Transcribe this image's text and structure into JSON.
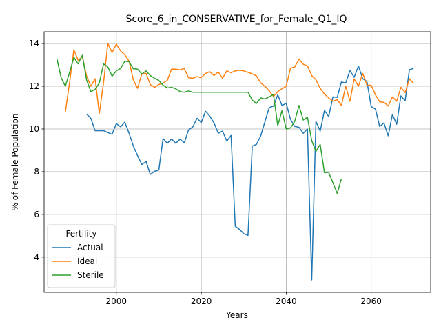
{
  "chart_data": {
    "type": "line",
    "title": "Score_6_in_CONSERVATIVE_for_Female_Q1_IQ",
    "xlabel": "Years",
    "ylabel": "% of Female Population",
    "xlim": [
      1983,
      2074
    ],
    "ylim": [
      2.35,
      14.55
    ],
    "xticks": [
      2000,
      2020,
      2040,
      2060
    ],
    "yticks": [
      4,
      6,
      8,
      10,
      12,
      14
    ],
    "grid": true,
    "legend": {
      "title": "Fertility",
      "placement": "lower-left"
    },
    "series": [
      {
        "name": "Actual",
        "color": "#1f77b4",
        "x": [
          1993,
          1994,
          1995,
          1996,
          1997,
          1998,
          1999,
          2000,
          2001,
          2002,
          2003,
          2004,
          2005,
          2006,
          2007,
          2008,
          2009,
          2010,
          2011,
          2012,
          2013,
          2014,
          2015,
          2016,
          2017,
          2018,
          2019,
          2020,
          2021,
          2022,
          2023,
          2024,
          2025,
          2026,
          2027,
          2028,
          2029,
          2030,
          2031,
          2032,
          2033,
          2034,
          2035,
          2036,
          2037,
          2038,
          2039,
          2040,
          2041,
          2042,
          2043,
          2044,
          2045,
          2046,
          2047,
          2048,
          2049,
          2050,
          2051,
          2052,
          2053,
          2054,
          2055,
          2056,
          2057,
          2058,
          2059,
          2060,
          2061,
          2062,
          2063,
          2064,
          2065,
          2066,
          2067,
          2068,
          2069,
          2070
        ],
        "y": [
          10.7,
          10.5,
          9.92,
          9.92,
          9.92,
          9.83,
          9.75,
          10.25,
          10.1,
          10.32,
          9.8,
          9.2,
          8.75,
          8.33,
          8.48,
          7.87,
          8.02,
          8.08,
          9.55,
          9.33,
          9.53,
          9.33,
          9.52,
          9.35,
          9.95,
          10.1,
          10.5,
          10.3,
          10.83,
          10.6,
          10.28,
          9.8,
          9.9,
          9.43,
          9.7,
          5.45,
          5.3,
          5.1,
          5.02,
          9.2,
          9.28,
          9.68,
          10.35,
          11.0,
          11.07,
          11.6,
          11.1,
          11.2,
          10.45,
          10.12,
          10.08,
          9.8,
          10.0,
          2.93,
          10.35,
          9.9,
          10.87,
          10.58,
          11.5,
          11.48,
          12.2,
          12.15,
          12.73,
          12.42,
          12.95,
          12.35,
          12.23,
          11.05,
          10.93,
          10.12,
          10.28,
          9.68,
          10.68,
          10.22,
          11.55,
          11.32,
          12.78,
          12.83
        ]
      },
      {
        "name": "Ideal",
        "color": "#ff7f0e",
        "x": [
          1988,
          1989,
          1990,
          1991,
          1992,
          1993,
          1994,
          1995,
          1996,
          1997,
          1998,
          1999,
          2000,
          2001,
          2002,
          2003,
          2004,
          2005,
          2006,
          2007,
          2008,
          2009,
          2010,
          2011,
          2012,
          2013,
          2014,
          2015,
          2016,
          2017,
          2018,
          2019,
          2020,
          2021,
          2022,
          2023,
          2024,
          2025,
          2026,
          2027,
          2028,
          2029,
          2030,
          2031,
          2032,
          2033,
          2034,
          2035,
          2036,
          2037,
          2038,
          2039,
          2040,
          2041,
          2042,
          2043,
          2044,
          2045,
          2046,
          2047,
          2048,
          2049,
          2050,
          2051,
          2052,
          2053,
          2054,
          2055,
          2056,
          2057,
          2058,
          2059,
          2060,
          2061,
          2062,
          2063,
          2064,
          2065,
          2066,
          2067,
          2068,
          2069,
          2070
        ],
        "y": [
          10.78,
          12.18,
          13.7,
          13.22,
          13.38,
          12.48,
          12.0,
          12.35,
          10.72,
          12.18,
          14.0,
          13.58,
          13.97,
          13.65,
          13.48,
          13.17,
          12.3,
          11.9,
          12.58,
          12.6,
          12.08,
          11.95,
          12.08,
          12.15,
          12.27,
          12.8,
          12.8,
          12.77,
          12.83,
          12.4,
          12.37,
          12.45,
          12.4,
          12.6,
          12.68,
          12.5,
          12.67,
          12.37,
          12.72,
          12.63,
          12.72,
          12.75,
          12.72,
          12.65,
          12.58,
          12.48,
          12.15,
          12.0,
          11.78,
          11.52,
          11.75,
          11.88,
          12.0,
          12.85,
          12.9,
          13.27,
          13.03,
          12.95,
          12.5,
          12.3,
          11.9,
          11.63,
          11.45,
          11.3,
          11.37,
          11.1,
          12.0,
          11.3,
          12.35,
          12.0,
          12.6,
          12.05,
          12.05,
          11.6,
          11.27,
          11.25,
          11.07,
          11.5,
          11.3,
          11.95,
          11.7,
          12.35,
          12.13
        ]
      },
      {
        "name": "Sterile",
        "color": "#2ca02c",
        "x": [
          1986,
          1987,
          1988,
          1989,
          1990,
          1991,
          1992,
          1993,
          1994,
          1995,
          1996,
          1997,
          1998,
          1999,
          2000,
          2001,
          2002,
          2003,
          2004,
          2005,
          2006,
          2007,
          2008,
          2009,
          2010,
          2011,
          2012,
          2013,
          2014,
          2015,
          2016,
          2017,
          2018,
          2019,
          2020,
          2021,
          2022,
          2023,
          2024,
          2025,
          2026,
          2027,
          2028,
          2029,
          2030,
          2031,
          2032,
          2033,
          2034,
          2035,
          2036,
          2037,
          2038,
          2039,
          2040,
          2041,
          2042,
          2043,
          2044,
          2045,
          2046,
          2047,
          2048,
          2049,
          2050,
          2051,
          2052,
          2053
        ],
        "y": [
          13.3,
          12.4,
          12.0,
          12.65,
          13.35,
          13.05,
          13.45,
          12.3,
          11.75,
          11.85,
          12.15,
          13.05,
          12.9,
          12.47,
          12.72,
          12.83,
          13.17,
          13.15,
          12.82,
          12.8,
          12.57,
          12.72,
          12.5,
          12.37,
          12.27,
          12.05,
          11.92,
          11.95,
          11.88,
          11.75,
          11.72,
          11.78,
          11.72,
          11.72,
          11.72,
          11.72,
          11.72,
          11.72,
          11.72,
          11.72,
          11.72,
          11.72,
          11.72,
          11.72,
          11.72,
          11.72,
          11.35,
          11.2,
          11.45,
          11.4,
          11.5,
          11.62,
          10.15,
          10.85,
          10.0,
          10.05,
          10.35,
          11.1,
          10.42,
          10.55,
          9.45,
          8.95,
          9.28,
          7.95,
          7.97,
          7.48,
          6.98,
          7.67
        ]
      }
    ]
  }
}
